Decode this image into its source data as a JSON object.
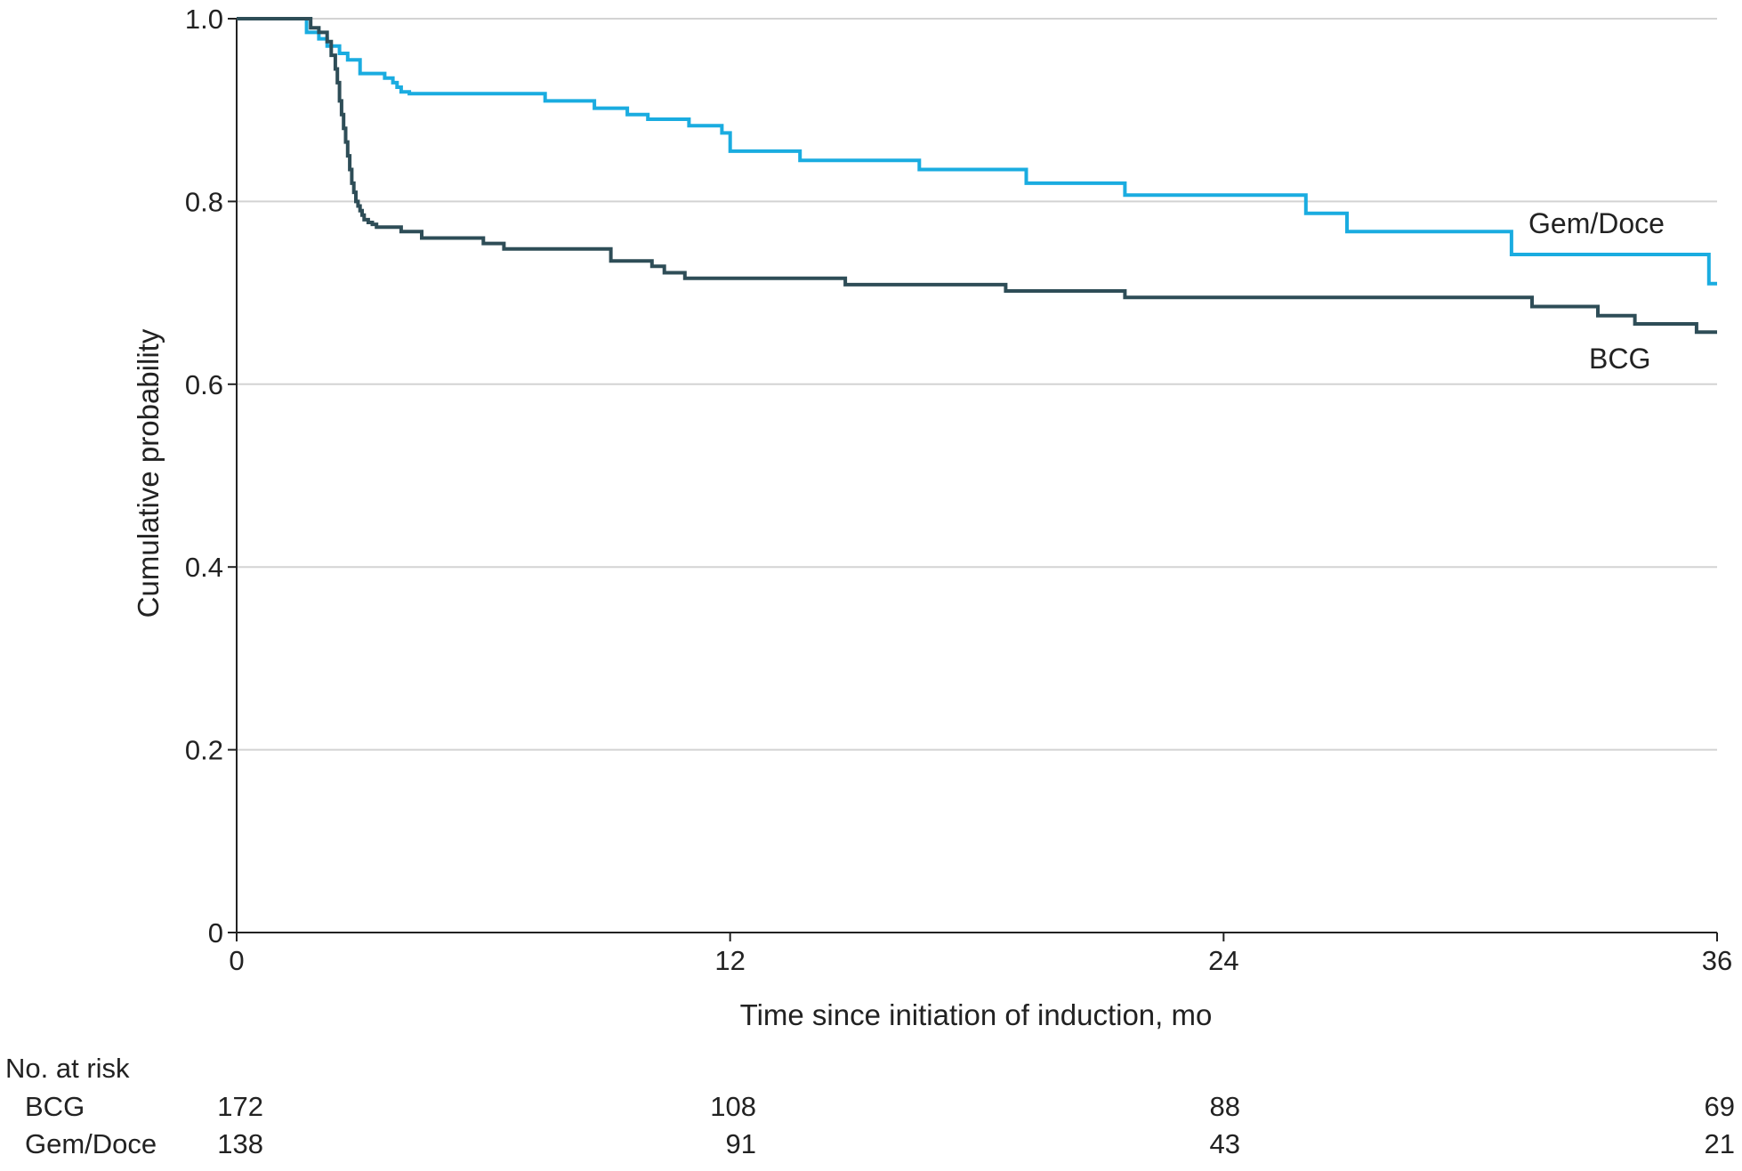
{
  "chart_data": {
    "type": "line",
    "step": true,
    "title": "",
    "xlabel": "Time since initiation of induction, mo",
    "ylabel": "Cumulative probability",
    "xlim": [
      0,
      36
    ],
    "ylim": [
      0,
      1.0
    ],
    "x_ticks": [
      0,
      12,
      24,
      36
    ],
    "x_tick_labels": [
      "0",
      "12",
      "24",
      "36"
    ],
    "y_ticks": [
      0,
      0.2,
      0.4,
      0.6,
      0.8,
      1.0
    ],
    "y_tick_labels": [
      "0",
      "0.2",
      "0.4",
      "0.6",
      "0.8",
      "1.0"
    ],
    "grid": "horizontal",
    "legend": "inline labels at curve ends",
    "series": [
      {
        "name": "Gem/Doce",
        "color": "#1aace0",
        "x": [
          0,
          1.7,
          2.0,
          2.2,
          2.5,
          2.7,
          3.0,
          3.5,
          3.6,
          3.8,
          3.9,
          4.0,
          4.2,
          5.5,
          6.0,
          7.0,
          7.5,
          8.0,
          8.7,
          9.0,
          9.5,
          10.0,
          11.0,
          11.8,
          12.0,
          13.7,
          15.0,
          16.6,
          18.0,
          19.2,
          20.0,
          21.6,
          23.0,
          26.0,
          27.0,
          29.0,
          31.0,
          32.0,
          34.0,
          35.0,
          35.8
        ],
        "y": [
          1.0,
          0.985,
          0.978,
          0.97,
          0.962,
          0.955,
          0.94,
          0.94,
          0.935,
          0.93,
          0.925,
          0.92,
          0.918,
          0.918,
          0.918,
          0.918,
          0.91,
          0.91,
          0.902,
          0.902,
          0.895,
          0.89,
          0.883,
          0.875,
          0.855,
          0.845,
          0.845,
          0.835,
          0.835,
          0.82,
          0.82,
          0.807,
          0.807,
          0.787,
          0.767,
          0.767,
          0.742,
          0.742,
          0.742,
          0.742,
          0.71
        ]
      },
      {
        "name": "BCG",
        "color": "#2e4d57",
        "x": [
          0,
          1.8,
          2.0,
          2.2,
          2.3,
          2.4,
          2.45,
          2.5,
          2.55,
          2.6,
          2.65,
          2.7,
          2.75,
          2.8,
          2.85,
          2.9,
          2.95,
          3.0,
          3.05,
          3.1,
          3.2,
          3.3,
          3.4,
          3.5,
          3.7,
          4.0,
          4.5,
          4.8,
          6.0,
          6.5,
          9.1,
          10.1,
          10.4,
          10.9,
          14.8,
          18.7,
          21.6,
          25.0,
          31.5,
          32.2,
          33.1,
          34.0,
          35.5
        ],
        "y": [
          1.0,
          0.99,
          0.985,
          0.975,
          0.96,
          0.945,
          0.93,
          0.91,
          0.895,
          0.88,
          0.865,
          0.85,
          0.835,
          0.82,
          0.81,
          0.8,
          0.795,
          0.79,
          0.785,
          0.78,
          0.777,
          0.775,
          0.772,
          0.772,
          0.772,
          0.767,
          0.76,
          0.76,
          0.754,
          0.748,
          0.735,
          0.729,
          0.722,
          0.716,
          0.709,
          0.702,
          0.695,
          0.695,
          0.685,
          0.685,
          0.675,
          0.666,
          0.657
        ]
      }
    ],
    "at_risk": {
      "header": "No. at risk",
      "times": [
        0,
        12,
        24,
        36
      ],
      "rows": [
        {
          "label": "BCG",
          "counts": [
            "172",
            "108",
            "88",
            "69"
          ]
        },
        {
          "label": "Gem/Doce",
          "counts": [
            "138",
            "91",
            "43",
            "21"
          ]
        }
      ]
    }
  }
}
